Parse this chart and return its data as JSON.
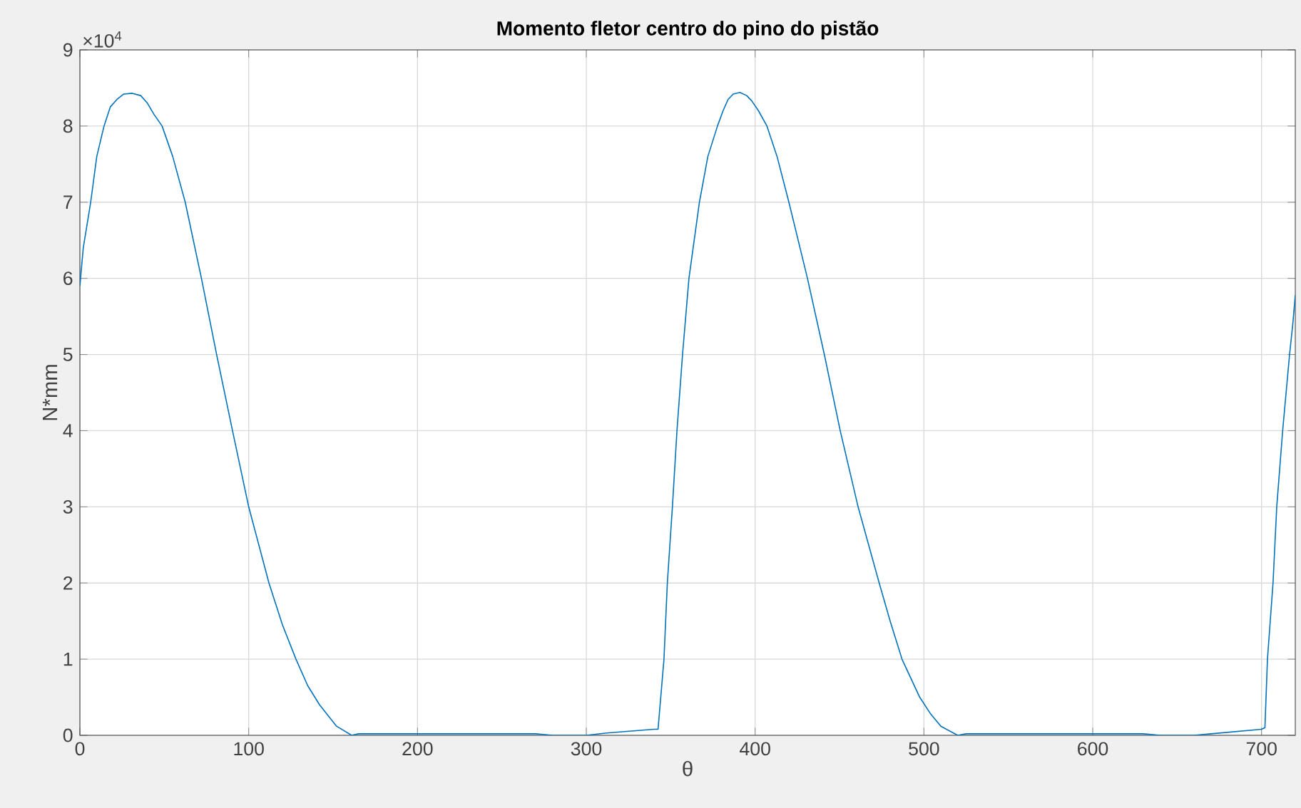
{
  "chart_data": {
    "type": "line",
    "title": "Momento fletor centro do pino do pistão",
    "xlabel": "θ",
    "ylabel": "N*mm",
    "annotations": [
      "×10$^{4}$"
    ],
    "x": [
      0,
      2,
      6.4,
      10,
      14.3,
      18,
      22,
      26,
      31,
      36,
      40,
      44,
      48.7,
      55,
      62.4,
      72,
      81,
      90.4,
      100,
      112,
      120,
      128,
      135,
      142,
      152,
      161,
      165,
      270,
      280,
      300,
      312,
      340,
      342.5,
      346,
      348,
      351,
      353.7,
      357,
      360.8,
      367,
      372,
      377.7,
      381,
      384,
      387,
      391,
      395,
      398,
      402,
      407,
      413,
      420,
      431,
      441,
      450.4,
      461,
      473.5,
      480,
      487,
      497.5,
      504,
      510,
      520,
      525,
      630,
      640,
      660,
      670,
      700,
      702,
      703.5,
      706.8,
      709,
      712.5,
      716.6,
      718.5,
      720
    ],
    "series": [
      {
        "color": "#0072bd",
        "values": [
          5.9,
          6.4,
          7.0,
          7.6,
          8.0,
          8.25,
          8.35,
          8.42,
          8.43,
          8.4,
          8.3,
          8.15,
          8.0,
          7.6,
          7.0,
          6.0,
          5.0,
          4.0,
          3.0,
          2.0,
          1.45,
          1.0,
          0.65,
          0.4,
          0.12,
          0.0,
          0.02,
          0.02,
          0.0,
          0.0,
          0.03,
          0.08,
          0.08,
          1.0,
          2.0,
          3.0,
          4.0,
          5.0,
          6.0,
          7.0,
          7.6,
          8.0,
          8.2,
          8.35,
          8.42,
          8.44,
          8.4,
          8.33,
          8.2,
          8.0,
          7.6,
          7.0,
          6.0,
          5.0,
          4.0,
          3.0,
          2.0,
          1.5,
          1.0,
          0.5,
          0.28,
          0.12,
          0.0,
          0.02,
          0.02,
          0.0,
          0.0,
          0.02,
          0.08,
          0.1,
          1.0,
          2.0,
          3.0,
          4.0,
          5.0,
          5.4,
          5.78
        ]
      }
    ],
    "xlim": [
      0,
      720
    ],
    "ylim": [
      0,
      9
    ],
    "xticks": [
      0,
      100,
      200,
      300,
      400,
      500,
      600,
      700
    ],
    "yticks": [
      0,
      1,
      2,
      3,
      4,
      5,
      6,
      7,
      8,
      9
    ],
    "grid": true
  }
}
